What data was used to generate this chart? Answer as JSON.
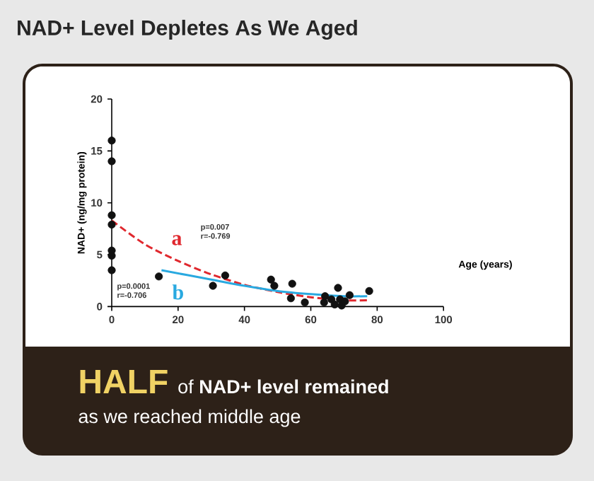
{
  "chart_data": {
    "type": "scatter",
    "title": "NAD+ Level Depletes As We Aged",
    "xlabel": "Age (years)",
    "ylabel": "NAD+ (ng/mg protein)",
    "xlim": [
      0,
      100
    ],
    "ylim": [
      0,
      20
    ],
    "xticks": [
      0,
      20,
      40,
      60,
      80,
      100
    ],
    "yticks": [
      0,
      5,
      10,
      15,
      20
    ],
    "series": [
      {
        "marker": "circle",
        "color": "#111111",
        "x": [
          0,
          0,
          0,
          0,
          0,
          0,
          0,
          14.2,
          30.5,
          34.2,
          48,
          49,
          54.4,
          54,
          58.2,
          64,
          64.3,
          66.2,
          67.2,
          68.2,
          68.8,
          69.3,
          70.3,
          71.7,
          77.6
        ],
        "values": [
          16,
          14,
          8.8,
          7.9,
          5.4,
          4.9,
          3.5,
          2.9,
          2,
          3,
          2.6,
          2,
          2.2,
          0.8,
          0.4,
          0.4,
          1,
          0.7,
          0.2,
          1.8,
          0.7,
          0.1,
          0.5,
          1.1,
          1.5
        ]
      },
      {
        "type": "line",
        "marker": "none",
        "color": "#e0282e",
        "line_style": "dashed",
        "x": [
          0,
          10,
          20,
          30,
          40,
          50,
          60,
          70,
          77
        ],
        "values": [
          8.3,
          6,
          4.4,
          3.1,
          2.1,
          1.4,
          0.9,
          0.6,
          0.6
        ]
      },
      {
        "type": "line",
        "marker": "none",
        "color": "#29a9e0",
        "line_style": "solid",
        "x": [
          15,
          30,
          40,
          50,
          60,
          70,
          77
        ],
        "values": [
          3.5,
          2.6,
          2,
          1.5,
          1.2,
          1,
          1
        ]
      }
    ],
    "annotations": [
      "a",
      "b",
      "p=0.007",
      "r=-0.769",
      "p=0.0001",
      "r=-0.706",
      "HALF",
      "of **NAD+ level remained**",
      "as we reached middle age"
    ]
  }
}
